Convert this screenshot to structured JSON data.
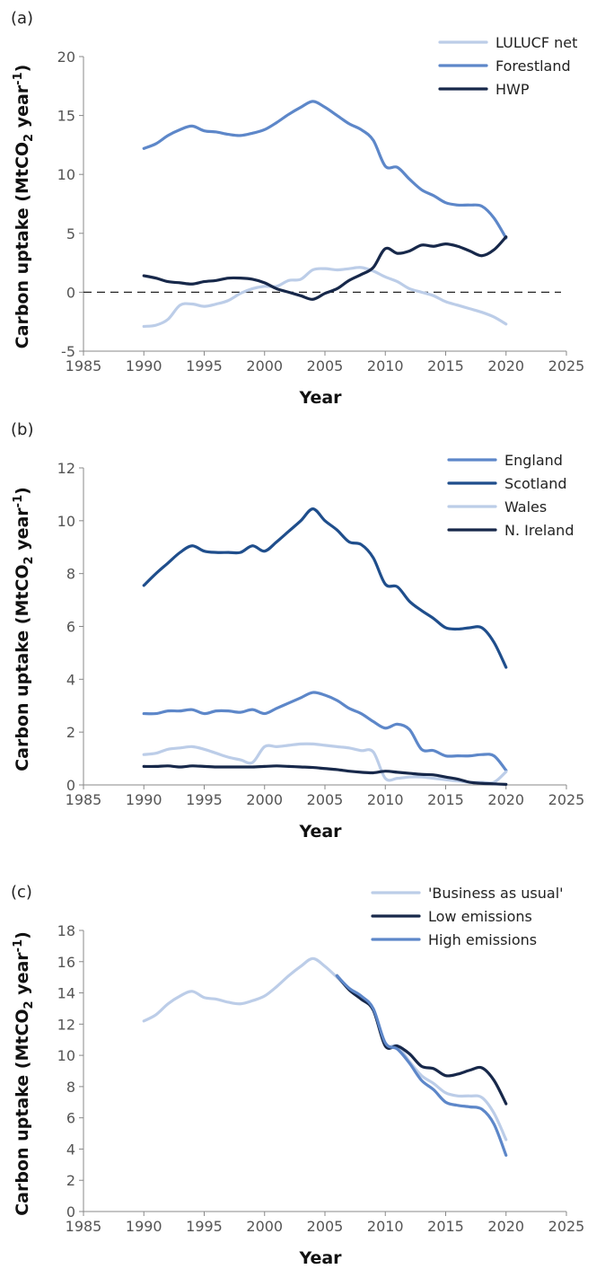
{
  "colors": {
    "light": "#bccde8",
    "mid": "#5d87c9",
    "deep": "#1f4e8c",
    "dark": "#17284a",
    "axis": "#888888",
    "zero_line": "#222222"
  },
  "chart_data": [
    {
      "id": "a",
      "type": "line",
      "panel_label": "(a)",
      "xlabel": "Year",
      "ylabel": "Carbon uptake (MtCO2 year-1)",
      "xlim": [
        1985,
        2025
      ],
      "ylim": [
        -5,
        20
      ],
      "xticks": [
        1985,
        1990,
        1995,
        2000,
        2005,
        2010,
        2015,
        2020,
        2025
      ],
      "yticks": [
        -5,
        0,
        5,
        10,
        15,
        20
      ],
      "ytick_labels": [
        "-5",
        "0",
        "5",
        "10",
        "15",
        "20"
      ],
      "zero_line": true,
      "legend_position": "top-right",
      "series": [
        {
          "name": "LULUCF net",
          "color": "light",
          "x": [
            1990,
            1991,
            1992,
            1993,
            1994,
            1995,
            1996,
            1997,
            1998,
            1999,
            2000,
            2001,
            2002,
            2003,
            2004,
            2005,
            2006,
            2007,
            2008,
            2009,
            2010,
            2011,
            2012,
            2013,
            2014,
            2015,
            2016,
            2017,
            2018,
            2019,
            2020
          ],
          "y": [
            -2.9,
            -2.8,
            -2.3,
            -1.1,
            -1.0,
            -1.2,
            -1.0,
            -0.7,
            -0.1,
            0.3,
            0.5,
            0.5,
            1.0,
            1.1,
            1.9,
            2.0,
            1.9,
            2.0,
            2.1,
            1.8,
            1.3,
            0.9,
            0.3,
            0.0,
            -0.3,
            -0.8,
            -1.1,
            -1.4,
            -1.7,
            -2.1,
            -2.7
          ]
        },
        {
          "name": "Forestland",
          "color": "mid",
          "x": [
            1990,
            1991,
            1992,
            1993,
            1994,
            1995,
            1996,
            1997,
            1998,
            1999,
            2000,
            2001,
            2002,
            2003,
            2004,
            2005,
            2006,
            2007,
            2008,
            2009,
            2010,
            2011,
            2012,
            2013,
            2014,
            2015,
            2016,
            2017,
            2018,
            2019,
            2020
          ],
          "y": [
            12.2,
            12.6,
            13.3,
            13.8,
            14.1,
            13.7,
            13.6,
            13.4,
            13.3,
            13.5,
            13.8,
            14.4,
            15.1,
            15.7,
            16.2,
            15.7,
            15.0,
            14.3,
            13.8,
            12.9,
            10.7,
            10.6,
            9.6,
            8.7,
            8.2,
            7.6,
            7.4,
            7.4,
            7.3,
            6.3,
            4.6
          ]
        },
        {
          "name": "HWP",
          "color": "dark",
          "x": [
            1990,
            1991,
            1992,
            1993,
            1994,
            1995,
            1996,
            1997,
            1998,
            1999,
            2000,
            2001,
            2002,
            2003,
            2004,
            2005,
            2006,
            2007,
            2008,
            2009,
            2010,
            2011,
            2012,
            2013,
            2014,
            2015,
            2016,
            2017,
            2018,
            2019,
            2020
          ],
          "y": [
            1.4,
            1.2,
            0.9,
            0.8,
            0.7,
            0.9,
            1.0,
            1.2,
            1.2,
            1.1,
            0.8,
            0.3,
            0.0,
            -0.3,
            -0.6,
            -0.1,
            0.3,
            1.0,
            1.5,
            2.1,
            3.7,
            3.3,
            3.5,
            4.0,
            3.9,
            4.1,
            3.9,
            3.5,
            3.1,
            3.6,
            4.7
          ]
        }
      ]
    },
    {
      "id": "b",
      "type": "line",
      "panel_label": "(b)",
      "xlabel": "Year",
      "ylabel": "Carbon uptake (MtCO2 year-1)",
      "xlim": [
        1985,
        2025
      ],
      "ylim": [
        0,
        12
      ],
      "xticks": [
        1985,
        1990,
        1995,
        2000,
        2005,
        2010,
        2015,
        2020,
        2025
      ],
      "yticks": [
        0,
        2,
        4,
        6,
        8,
        10,
        12
      ],
      "ytick_labels": [
        "0",
        "2",
        "4",
        "6",
        "8",
        "10",
        "12"
      ],
      "zero_line": false,
      "legend_position": "top-right",
      "series": [
        {
          "name": "England",
          "color": "mid",
          "x": [
            1990,
            1991,
            1992,
            1993,
            1994,
            1995,
            1996,
            1997,
            1998,
            1999,
            2000,
            2001,
            2002,
            2003,
            2004,
            2005,
            2006,
            2007,
            2008,
            2009,
            2010,
            2011,
            2012,
            2013,
            2014,
            2015,
            2016,
            2017,
            2018,
            2019,
            2020
          ],
          "y": [
            2.7,
            2.7,
            2.8,
            2.8,
            2.85,
            2.7,
            2.8,
            2.8,
            2.75,
            2.85,
            2.7,
            2.9,
            3.1,
            3.3,
            3.5,
            3.4,
            3.2,
            2.9,
            2.7,
            2.4,
            2.15,
            2.3,
            2.1,
            1.35,
            1.3,
            1.1,
            1.1,
            1.1,
            1.15,
            1.1,
            0.55
          ]
        },
        {
          "name": "Scotland",
          "color": "deep",
          "x": [
            1990,
            1991,
            1992,
            1993,
            1994,
            1995,
            1996,
            1997,
            1998,
            1999,
            2000,
            2001,
            2002,
            2003,
            2004,
            2005,
            2006,
            2007,
            2008,
            2009,
            2010,
            2011,
            2012,
            2013,
            2014,
            2015,
            2016,
            2017,
            2018,
            2019,
            2020
          ],
          "y": [
            7.55,
            8.0,
            8.4,
            8.8,
            9.05,
            8.85,
            8.8,
            8.8,
            8.8,
            9.05,
            8.85,
            9.2,
            9.6,
            10.0,
            10.45,
            10.0,
            9.65,
            9.2,
            9.1,
            8.6,
            7.6,
            7.5,
            6.95,
            6.6,
            6.3,
            5.95,
            5.9,
            5.95,
            5.95,
            5.4,
            4.45
          ]
        },
        {
          "name": "Wales",
          "color": "light",
          "x": [
            1990,
            1991,
            1992,
            1993,
            1994,
            1995,
            1996,
            1997,
            1998,
            1999,
            2000,
            2001,
            2002,
            2003,
            2004,
            2005,
            2006,
            2007,
            2008,
            2009,
            2010,
            2011,
            2012,
            2013,
            2014,
            2015,
            2016,
            2017,
            2018,
            2019,
            2020
          ],
          "y": [
            1.15,
            1.2,
            1.35,
            1.4,
            1.45,
            1.35,
            1.2,
            1.05,
            0.95,
            0.85,
            1.45,
            1.45,
            1.5,
            1.55,
            1.55,
            1.5,
            1.45,
            1.4,
            1.3,
            1.25,
            0.25,
            0.25,
            0.3,
            0.3,
            0.25,
            0.2,
            0.15,
            0.1,
            0.1,
            0.1,
            0.5
          ]
        },
        {
          "name": "N. Ireland",
          "color": "dark",
          "x": [
            1990,
            1991,
            1992,
            1993,
            1994,
            1995,
            1996,
            1997,
            1998,
            1999,
            2000,
            2001,
            2002,
            2003,
            2004,
            2005,
            2006,
            2007,
            2008,
            2009,
            2010,
            2011,
            2012,
            2013,
            2014,
            2015,
            2016,
            2017,
            2018,
            2019,
            2020
          ],
          "y": [
            0.7,
            0.7,
            0.72,
            0.68,
            0.72,
            0.7,
            0.68,
            0.68,
            0.68,
            0.68,
            0.7,
            0.72,
            0.7,
            0.68,
            0.66,
            0.62,
            0.58,
            0.52,
            0.48,
            0.46,
            0.52,
            0.48,
            0.44,
            0.4,
            0.38,
            0.3,
            0.22,
            0.1,
            0.06,
            0.04,
            0.02
          ]
        }
      ]
    },
    {
      "id": "c",
      "type": "line",
      "panel_label": "(c)",
      "xlabel": "Year",
      "ylabel": "Carbon uptake (MtCO2 year-1)",
      "xlim": [
        1985,
        2025
      ],
      "ylim": [
        0,
        18
      ],
      "xticks": [
        1985,
        1990,
        1995,
        2000,
        2005,
        2010,
        2015,
        2020,
        2025
      ],
      "yticks": [
        0,
        2,
        4,
        6,
        8,
        10,
        12,
        14,
        16,
        18
      ],
      "ytick_labels": [
        "0",
        "2",
        "4",
        "6",
        "8",
        "10",
        "12",
        "14",
        "16",
        "18"
      ],
      "zero_line": false,
      "legend_position": "top-right",
      "series": [
        {
          "name": "'Business as usual'",
          "color": "light",
          "x": [
            1990,
            1991,
            1992,
            1993,
            1994,
            1995,
            1996,
            1997,
            1998,
            1999,
            2000,
            2001,
            2002,
            2003,
            2004,
            2005,
            2006,
            2007,
            2008,
            2009,
            2010,
            2011,
            2012,
            2013,
            2014,
            2015,
            2016,
            2017,
            2018,
            2019,
            2020
          ],
          "y": [
            12.2,
            12.6,
            13.3,
            13.8,
            14.1,
            13.7,
            13.6,
            13.4,
            13.3,
            13.5,
            13.8,
            14.4,
            15.1,
            15.7,
            16.2,
            15.7,
            15.0,
            14.3,
            13.8,
            12.9,
            10.7,
            10.6,
            9.6,
            8.7,
            8.2,
            7.6,
            7.4,
            7.4,
            7.3,
            6.3,
            4.6
          ]
        },
        {
          "name": "Low emissions",
          "color": "dark",
          "x": [
            2006,
            2007,
            2008,
            2009,
            2010,
            2011,
            2012,
            2013,
            2014,
            2015,
            2016,
            2017,
            2018,
            2019,
            2020
          ],
          "y": [
            15.1,
            14.2,
            13.6,
            12.9,
            10.6,
            10.6,
            10.1,
            9.3,
            9.15,
            8.7,
            8.8,
            9.05,
            9.2,
            8.4,
            6.9
          ]
        },
        {
          "name": "High emissions",
          "color": "mid",
          "x": [
            2006,
            2007,
            2008,
            2009,
            2010,
            2011,
            2012,
            2013,
            2014,
            2015,
            2016,
            2017,
            2018,
            2019,
            2020
          ],
          "y": [
            15.1,
            14.3,
            13.8,
            13.0,
            10.8,
            10.4,
            9.5,
            8.4,
            7.8,
            7.0,
            6.8,
            6.7,
            6.55,
            5.6,
            3.6
          ]
        }
      ]
    }
  ]
}
